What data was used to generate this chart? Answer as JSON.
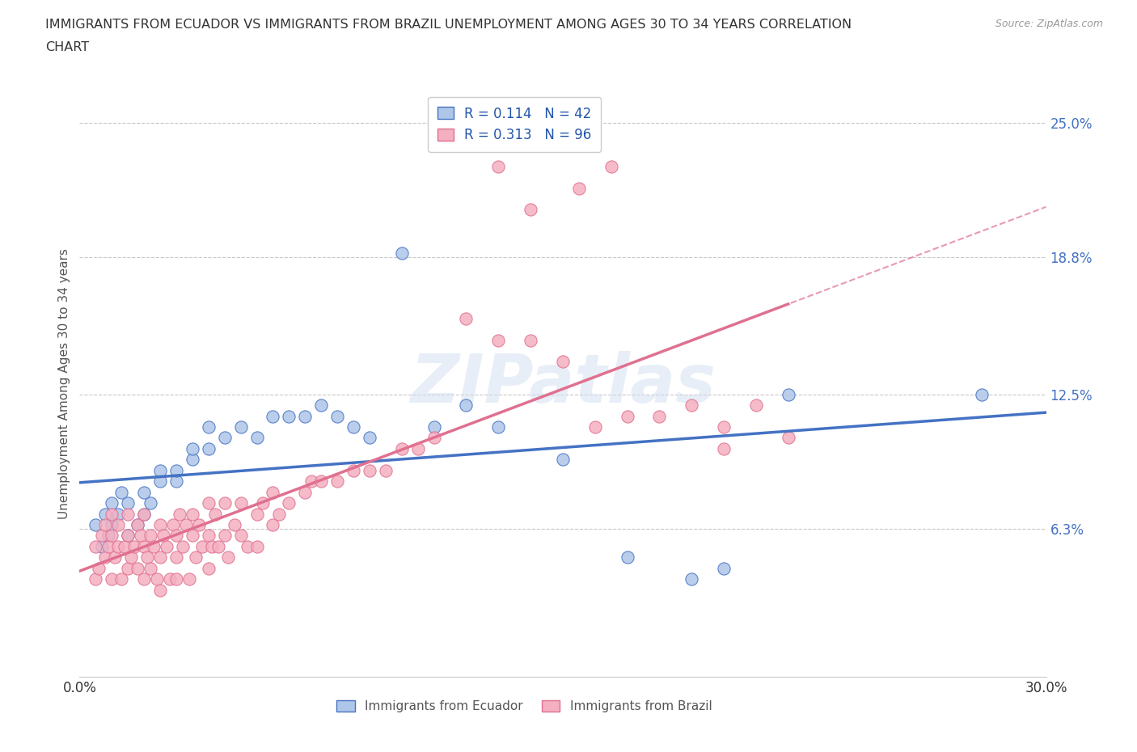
{
  "title": "IMMIGRANTS FROM ECUADOR VS IMMIGRANTS FROM BRAZIL UNEMPLOYMENT AMONG AGES 30 TO 34 YEARS CORRELATION\nCHART",
  "source_text": "Source: ZipAtlas.com",
  "ylabel": "Unemployment Among Ages 30 to 34 years",
  "xlim": [
    0.0,
    0.3
  ],
  "ylim": [
    -0.005,
    0.265
  ],
  "ytick_positions": [
    0.063,
    0.125,
    0.188,
    0.25
  ],
  "ytick_labels": [
    "6.3%",
    "12.5%",
    "18.8%",
    "25.0%"
  ],
  "ecuador_fill_color": "#aec6e8",
  "brazil_fill_color": "#f4afc0",
  "ecuador_line_color": "#4472c4",
  "brazil_line_color": "#e07090",
  "R_ecuador": 0.114,
  "N_ecuador": 42,
  "R_brazil": 0.313,
  "N_brazil": 96,
  "legend_color": "#2255aa",
  "watermark_text": "ZIPatlas",
  "background_color": "#ffffff",
  "grid_color": "#c8c8c8",
  "ecuador_x": [
    0.005,
    0.007,
    0.008,
    0.009,
    0.01,
    0.01,
    0.012,
    0.013,
    0.015,
    0.015,
    0.018,
    0.02,
    0.02,
    0.022,
    0.025,
    0.025,
    0.03,
    0.03,
    0.035,
    0.035,
    0.04,
    0.04,
    0.045,
    0.05,
    0.055,
    0.06,
    0.065,
    0.07,
    0.075,
    0.08,
    0.085,
    0.09,
    0.1,
    0.11,
    0.12,
    0.13,
    0.15,
    0.17,
    0.19,
    0.2,
    0.22,
    0.28
  ],
  "ecuador_y": [
    0.065,
    0.055,
    0.07,
    0.06,
    0.075,
    0.065,
    0.07,
    0.08,
    0.075,
    0.06,
    0.065,
    0.08,
    0.07,
    0.075,
    0.085,
    0.09,
    0.085,
    0.09,
    0.095,
    0.1,
    0.1,
    0.11,
    0.105,
    0.11,
    0.105,
    0.115,
    0.115,
    0.115,
    0.12,
    0.115,
    0.11,
    0.105,
    0.19,
    0.11,
    0.12,
    0.11,
    0.095,
    0.05,
    0.04,
    0.045,
    0.125,
    0.125
  ],
  "brazil_x": [
    0.005,
    0.005,
    0.006,
    0.007,
    0.008,
    0.008,
    0.009,
    0.01,
    0.01,
    0.01,
    0.011,
    0.012,
    0.012,
    0.013,
    0.014,
    0.015,
    0.015,
    0.015,
    0.016,
    0.017,
    0.018,
    0.018,
    0.019,
    0.02,
    0.02,
    0.02,
    0.021,
    0.022,
    0.022,
    0.023,
    0.024,
    0.025,
    0.025,
    0.025,
    0.026,
    0.027,
    0.028,
    0.029,
    0.03,
    0.03,
    0.03,
    0.031,
    0.032,
    0.033,
    0.034,
    0.035,
    0.035,
    0.036,
    0.037,
    0.038,
    0.04,
    0.04,
    0.04,
    0.041,
    0.042,
    0.043,
    0.045,
    0.045,
    0.046,
    0.048,
    0.05,
    0.05,
    0.052,
    0.055,
    0.055,
    0.057,
    0.06,
    0.06,
    0.062,
    0.065,
    0.07,
    0.072,
    0.075,
    0.08,
    0.085,
    0.09,
    0.095,
    0.1,
    0.105,
    0.11,
    0.12,
    0.13,
    0.14,
    0.15,
    0.16,
    0.17,
    0.18,
    0.19,
    0.2,
    0.21,
    0.13,
    0.14,
    0.155,
    0.165,
    0.2,
    0.22
  ],
  "brazil_y": [
    0.04,
    0.055,
    0.045,
    0.06,
    0.05,
    0.065,
    0.055,
    0.04,
    0.06,
    0.07,
    0.05,
    0.055,
    0.065,
    0.04,
    0.055,
    0.045,
    0.06,
    0.07,
    0.05,
    0.055,
    0.045,
    0.065,
    0.06,
    0.04,
    0.055,
    0.07,
    0.05,
    0.06,
    0.045,
    0.055,
    0.04,
    0.05,
    0.065,
    0.035,
    0.06,
    0.055,
    0.04,
    0.065,
    0.05,
    0.06,
    0.04,
    0.07,
    0.055,
    0.065,
    0.04,
    0.06,
    0.07,
    0.05,
    0.065,
    0.055,
    0.06,
    0.045,
    0.075,
    0.055,
    0.07,
    0.055,
    0.06,
    0.075,
    0.05,
    0.065,
    0.06,
    0.075,
    0.055,
    0.07,
    0.055,
    0.075,
    0.065,
    0.08,
    0.07,
    0.075,
    0.08,
    0.085,
    0.085,
    0.085,
    0.09,
    0.09,
    0.09,
    0.1,
    0.1,
    0.105,
    0.16,
    0.15,
    0.15,
    0.14,
    0.11,
    0.115,
    0.115,
    0.12,
    0.11,
    0.12,
    0.23,
    0.21,
    0.22,
    0.23,
    0.1,
    0.105
  ]
}
